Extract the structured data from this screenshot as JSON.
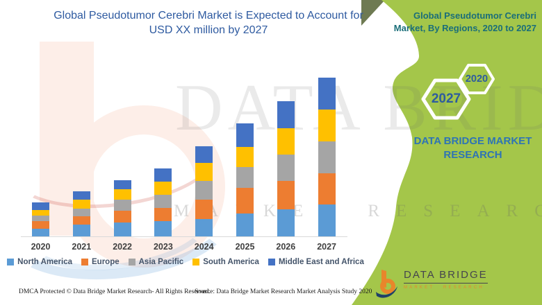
{
  "header": {
    "title_line1": "Global Pseudotumor Cerebri Market is Expected to Account for",
    "title_line2": "USD XX million by 2027"
  },
  "panel": {
    "title_line1": "Global Pseudotumor Cerebri",
    "title_line2": "Market, By Regions, 2020 to 2027",
    "hexagons": [
      {
        "year": "2027"
      },
      {
        "year": "2020"
      }
    ],
    "brand_line1": "DATA BRIDGE MARKET",
    "brand_line2": "RESEARCH",
    "colors": {
      "green": "#A4C64A",
      "dark_corner": "#6E7A52",
      "title_teal": "#1A6E79",
      "hex_year_blue": "#2D5C9E",
      "brand_blue": "#2E74B5"
    }
  },
  "watermark": {
    "big_text": "DATA BRIDGE",
    "small_text": "MARKET RESEARCH"
  },
  "logo": {
    "name_text": "DATA BRIDGE",
    "subtitle_text": "MARKET RESEARCH",
    "orange": "#E8862B",
    "navy": "#1F4068"
  },
  "footer": {
    "left_text": "DMCA Protected © Data Bridge Market Research- All Rights Reserved.",
    "right_text": "Source: Data Bridge Market Research Market Analysis Study 2020"
  },
  "chart_data": {
    "type": "bar",
    "stacked": true,
    "title": "Global Pseudotumor Cerebri Market is Expected to Account for USD XX million by 2027",
    "note": "Values are undisclosed (shown as USD XX million); series values below are relative magnitudes estimated from bar segment heights in pixels",
    "legend_position": "bottom",
    "value_axis_visible": false,
    "categories": [
      "2020",
      "2021",
      "2022",
      "2023",
      "2024",
      "2025",
      "2026",
      "2027"
    ],
    "series": [
      {
        "name": "North America",
        "color": "#5B9BD5",
        "values": [
          11,
          17,
          20,
          22,
          25,
          33,
          39,
          46
        ]
      },
      {
        "name": "Europe",
        "color": "#ED7D31",
        "values": [
          11,
          12,
          17,
          19,
          28,
          37,
          41,
          45
        ]
      },
      {
        "name": "Asia Pacific",
        "color": "#A5A5A5",
        "values": [
          8,
          11,
          16,
          19,
          27,
          30,
          38,
          46
        ]
      },
      {
        "name": "South America",
        "color": "#FFC000",
        "values": [
          8,
          13,
          15,
          19,
          26,
          29,
          38,
          46
        ]
      },
      {
        "name": "Middle East and Africa",
        "color": "#4472C4",
        "values": [
          11,
          12,
          13,
          19,
          24,
          34,
          39,
          46
        ]
      }
    ]
  }
}
